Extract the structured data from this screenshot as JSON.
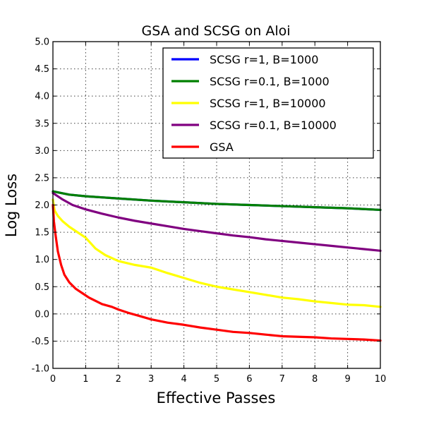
{
  "chart_data": {
    "type": "line",
    "title": "GSA and SCSG on Aloi",
    "xlabel": "Effective Passes",
    "ylabel": "Log Loss",
    "xlim": [
      0,
      10
    ],
    "ylim": [
      -1.0,
      5.0
    ],
    "xticks": [
      0,
      1,
      2,
      3,
      4,
      5,
      6,
      7,
      8,
      9,
      10
    ],
    "xtick_labels": [
      "0",
      "1",
      "2",
      "3",
      "4",
      "5",
      "6",
      "7",
      "8",
      "9",
      "10"
    ],
    "yticks": [
      -1.0,
      -0.5,
      0.0,
      0.5,
      1.0,
      1.5,
      2.0,
      2.5,
      3.0,
      3.5,
      4.0,
      4.5,
      5.0
    ],
    "ytick_labels": [
      "-1.0",
      "-0.5",
      "0.0",
      "0.5",
      "1.0",
      "1.5",
      "2.0",
      "2.5",
      "3.0",
      "3.5",
      "4.0",
      "4.5",
      "5.0"
    ],
    "grid": true,
    "legend_position": "top-right",
    "series": [
      {
        "name": "SCSG r=1, B=1000",
        "color": "#0000ff",
        "x": [
          0,
          0.5,
          1,
          1.5,
          2,
          3,
          4,
          5,
          6,
          7,
          8,
          9,
          10
        ],
        "y": [
          2.25,
          2.19,
          2.16,
          2.14,
          2.12,
          2.08,
          2.05,
          2.02,
          2.0,
          1.98,
          1.96,
          1.94,
          1.91
        ]
      },
      {
        "name": "SCSG r=0.1, B=1000",
        "color": "#008000",
        "x": [
          0,
          0.5,
          1,
          1.5,
          2,
          3,
          4,
          5,
          6,
          7,
          8,
          9,
          10
        ],
        "y": [
          2.25,
          2.19,
          2.16,
          2.14,
          2.12,
          2.08,
          2.05,
          2.02,
          2.0,
          1.98,
          1.96,
          1.94,
          1.91
        ]
      },
      {
        "name": "SCSG r=1, B=10000",
        "color": "#ffff00",
        "x": [
          0,
          0.05,
          0.15,
          0.3,
          0.5,
          0.8,
          1,
          1.3,
          1.6,
          2,
          2.5,
          3,
          3.5,
          4,
          4.5,
          5,
          5.5,
          6,
          6.5,
          7,
          7.5,
          8,
          8.5,
          9,
          9.5,
          10
        ],
        "y": [
          2.1,
          1.9,
          1.8,
          1.7,
          1.6,
          1.48,
          1.4,
          1.2,
          1.08,
          0.97,
          0.9,
          0.85,
          0.75,
          0.66,
          0.57,
          0.5,
          0.45,
          0.4,
          0.35,
          0.3,
          0.27,
          0.23,
          0.2,
          0.17,
          0.16,
          0.13
        ]
      },
      {
        "name": "SCSG r=0.1, B=10000",
        "color": "#800080",
        "x": [
          0,
          0.3,
          0.6,
          1,
          1.5,
          2,
          2.5,
          3,
          3.5,
          4,
          4.5,
          5,
          5.5,
          6,
          6.5,
          7,
          7.5,
          8,
          8.5,
          9,
          9.5,
          10
        ],
        "y": [
          2.22,
          2.1,
          2.0,
          1.92,
          1.84,
          1.77,
          1.71,
          1.66,
          1.61,
          1.56,
          1.52,
          1.48,
          1.44,
          1.41,
          1.37,
          1.34,
          1.31,
          1.28,
          1.25,
          1.22,
          1.19,
          1.16
        ]
      },
      {
        "name": "GSA",
        "color": "#ff0000",
        "x": [
          0,
          0.03,
          0.08,
          0.15,
          0.25,
          0.35,
          0.5,
          0.7,
          0.9,
          1.1,
          1.3,
          1.5,
          1.8,
          2.0,
          2.3,
          2.6,
          3.0,
          3.5,
          4.0,
          4.5,
          5.0,
          5.5,
          6.0,
          6.5,
          7.0,
          7.5,
          8.0,
          8.5,
          9.0,
          9.5,
          10
        ],
        "y": [
          2.0,
          1.7,
          1.45,
          1.15,
          0.9,
          0.72,
          0.58,
          0.46,
          0.38,
          0.3,
          0.24,
          0.18,
          0.13,
          0.08,
          0.02,
          -0.03,
          -0.1,
          -0.16,
          -0.2,
          -0.25,
          -0.29,
          -0.33,
          -0.35,
          -0.38,
          -0.41,
          -0.42,
          -0.43,
          -0.45,
          -0.46,
          -0.47,
          -0.49
        ]
      }
    ]
  }
}
